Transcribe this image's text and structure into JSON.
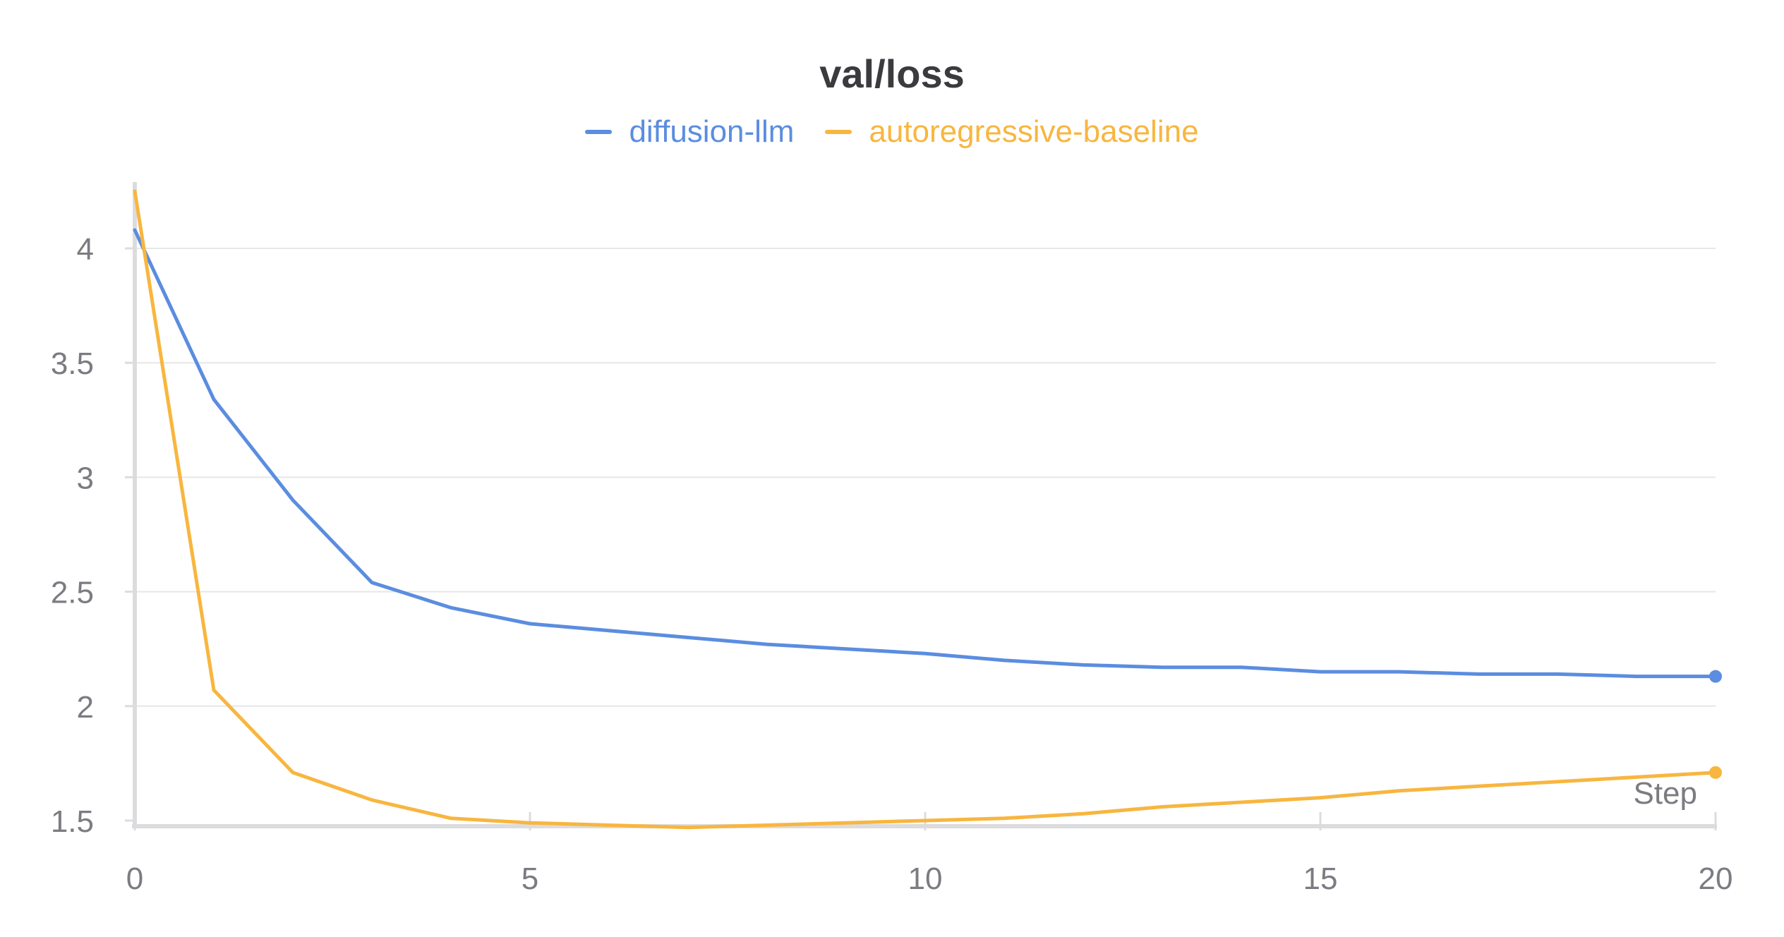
{
  "chart_data": {
    "type": "line",
    "title": "val/loss",
    "xlabel": "Step",
    "ylabel": "",
    "xlim": [
      0,
      20
    ],
    "ylim": [
      1.5,
      4.25
    ],
    "xticks": [
      0,
      5,
      10,
      15,
      20
    ],
    "xtick_labels": [
      "0",
      "5",
      "10",
      "15",
      "20"
    ],
    "yticks": [
      1.5,
      2,
      2.5,
      3,
      3.5,
      4
    ],
    "ytick_labels": [
      "1.5",
      "2",
      "2.5",
      "3",
      "3.5",
      "4"
    ],
    "grid": true,
    "legend_position": "top-center",
    "x": [
      0,
      1,
      2,
      3,
      4,
      5,
      6,
      7,
      8,
      9,
      10,
      11,
      12,
      13,
      14,
      15,
      16,
      17,
      18,
      19,
      20
    ],
    "series": [
      {
        "name": "diffusion-llm",
        "color": "#5b8de0",
        "values": [
          4.08,
          3.34,
          2.9,
          2.54,
          2.43,
          2.36,
          2.33,
          2.3,
          2.27,
          2.25,
          2.23,
          2.2,
          2.18,
          2.17,
          2.17,
          2.15,
          2.15,
          2.14,
          2.14,
          2.13,
          2.13
        ]
      },
      {
        "name": "autoregressive-baseline",
        "color": "#f8b63f",
        "values": [
          4.25,
          2.07,
          1.71,
          1.59,
          1.51,
          1.49,
          1.48,
          1.47,
          1.48,
          1.49,
          1.5,
          1.51,
          1.53,
          1.56,
          1.58,
          1.6,
          1.63,
          1.65,
          1.67,
          1.69,
          1.71
        ]
      }
    ]
  },
  "colors": {
    "title_text": "#3b3b3f",
    "tick_text": "#7b7b82",
    "grid": "#e7e7e9",
    "axis": "#dcdcdf"
  }
}
